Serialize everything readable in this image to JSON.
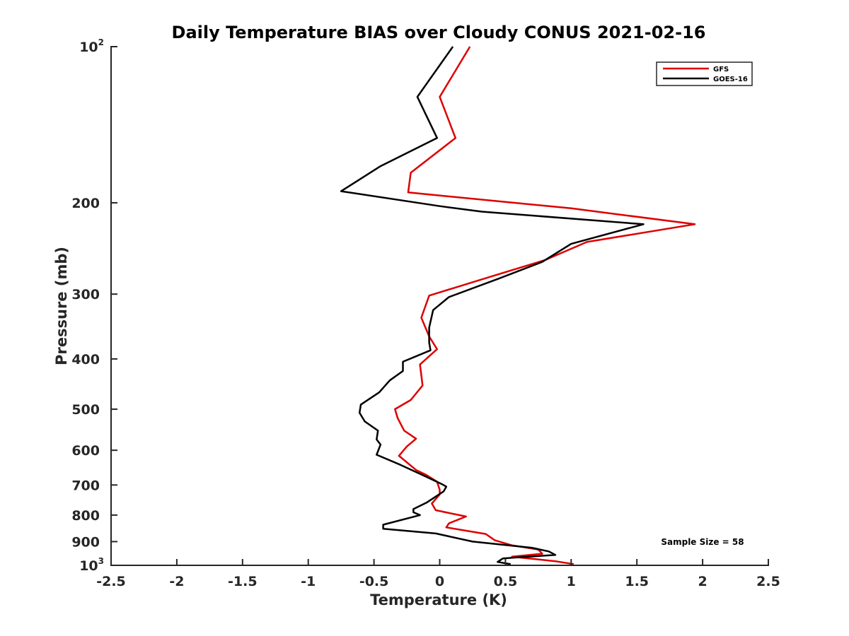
{
  "chart_data": {
    "type": "line",
    "title": "Daily Temperature BIAS over Cloudy CONUS 2021-02-16",
    "xlabel": "Temperature (K)",
    "ylabel": "Pressure (mb)",
    "xlim": [
      -2.5,
      2.5
    ],
    "ylim": [
      1000,
      100
    ],
    "y_scale": "log",
    "y_reversed": true,
    "grid": false,
    "legend_position": "top-right",
    "x_ticks": [
      -2.5,
      -2,
      -1.5,
      -1,
      -0.5,
      0,
      0.5,
      1,
      1.5,
      2,
      2.5
    ],
    "x_tick_labels": [
      "-2.5",
      "-2",
      "-1.5",
      "-1",
      "-0.5",
      "0",
      "0.5",
      "1",
      "1.5",
      "2",
      "2.5"
    ],
    "y_ticks": [
      {
        "value": 100,
        "base": "10",
        "exp": "2"
      },
      {
        "value": 200,
        "label": "200"
      },
      {
        "value": 300,
        "label": "300"
      },
      {
        "value": 400,
        "label": "400"
      },
      {
        "value": 500,
        "label": "500"
      },
      {
        "value": 600,
        "label": "600"
      },
      {
        "value": 700,
        "label": "700"
      },
      {
        "value": 800,
        "label": "800"
      },
      {
        "value": 900,
        "label": "900"
      },
      {
        "value": 1000,
        "base": "10",
        "exp": "3"
      }
    ],
    "series": [
      {
        "name": "GFS",
        "color": "#dd0000",
        "points": [
          [
            0.23,
            100
          ],
          [
            0.0,
            125
          ],
          [
            0.12,
            150
          ],
          [
            -0.22,
            175
          ],
          [
            -0.24,
            191
          ],
          [
            1.0,
            205
          ],
          [
            1.94,
            220
          ],
          [
            1.12,
            238
          ],
          [
            0.8,
            258
          ],
          [
            0.38,
            278
          ],
          [
            -0.08,
            302
          ],
          [
            -0.14,
            333
          ],
          [
            -0.08,
            362
          ],
          [
            -0.02,
            383
          ],
          [
            -0.15,
            410
          ],
          [
            -0.13,
            450
          ],
          [
            -0.22,
            480
          ],
          [
            -0.34,
            500
          ],
          [
            -0.32,
            520
          ],
          [
            -0.27,
            550
          ],
          [
            -0.18,
            570
          ],
          [
            -0.25,
            590
          ],
          [
            -0.31,
            615
          ],
          [
            -0.18,
            655
          ],
          [
            -0.1,
            670
          ],
          [
            -0.02,
            690
          ],
          [
            0.0,
            715
          ],
          [
            0.0,
            730
          ],
          [
            -0.06,
            760
          ],
          [
            -0.03,
            783
          ],
          [
            0.2,
            805
          ],
          [
            0.07,
            830
          ],
          [
            0.05,
            845
          ],
          [
            0.35,
            870
          ],
          [
            0.42,
            895
          ],
          [
            0.55,
            915
          ],
          [
            0.75,
            932
          ],
          [
            0.78,
            950
          ],
          [
            0.55,
            962
          ],
          [
            0.88,
            982
          ],
          [
            1.02,
            995
          ]
        ]
      },
      {
        "name": "GOES-16",
        "color": "#000000",
        "points": [
          [
            0.1,
            100
          ],
          [
            -0.17,
            125
          ],
          [
            -0.02,
            150
          ],
          [
            -0.45,
            170
          ],
          [
            -0.75,
            190
          ],
          [
            0.0,
            203
          ],
          [
            0.32,
            208
          ],
          [
            1.55,
            220
          ],
          [
            1.0,
            240
          ],
          [
            0.78,
            260
          ],
          [
            0.45,
            280
          ],
          [
            0.07,
            304
          ],
          [
            -0.05,
            322
          ],
          [
            -0.08,
            348
          ],
          [
            -0.08,
            372
          ],
          [
            -0.07,
            385
          ],
          [
            -0.28,
            405
          ],
          [
            -0.28,
            422
          ],
          [
            -0.38,
            440
          ],
          [
            -0.46,
            464
          ],
          [
            -0.6,
            490
          ],
          [
            -0.61,
            508
          ],
          [
            -0.57,
            528
          ],
          [
            -0.47,
            550
          ],
          [
            -0.48,
            572
          ],
          [
            -0.45,
            585
          ],
          [
            -0.48,
            612
          ],
          [
            -0.3,
            640
          ],
          [
            -0.13,
            670
          ],
          [
            0.02,
            698
          ],
          [
            0.05,
            705
          ],
          [
            0.03,
            720
          ],
          [
            -0.1,
            757
          ],
          [
            -0.2,
            779
          ],
          [
            -0.2,
            790
          ],
          [
            -0.15,
            800
          ],
          [
            -0.43,
            835
          ],
          [
            -0.43,
            850
          ],
          [
            -0.03,
            868
          ],
          [
            0.25,
            900
          ],
          [
            0.7,
            925
          ],
          [
            0.83,
            940
          ],
          [
            0.88,
            955
          ],
          [
            0.6,
            965
          ],
          [
            0.48,
            970
          ],
          [
            0.44,
            985
          ],
          [
            0.54,
            995
          ]
        ]
      }
    ],
    "annotations": [
      {
        "text": "Sample Size = 58"
      }
    ]
  }
}
